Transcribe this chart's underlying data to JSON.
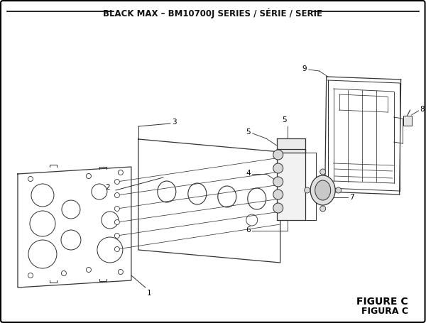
{
  "title": "BLACK MAX – BM10700J SERIES / SÉRIE / SERIE",
  "figure_label": "FIGURE C",
  "figura_label": "FIGURA C",
  "bg_color": "#ffffff",
  "border_color": "#000000",
  "line_color": "#333333",
  "title_fontsize": 8.5,
  "label_fontsize": 7.5,
  "figure_label_fontsize": 10
}
